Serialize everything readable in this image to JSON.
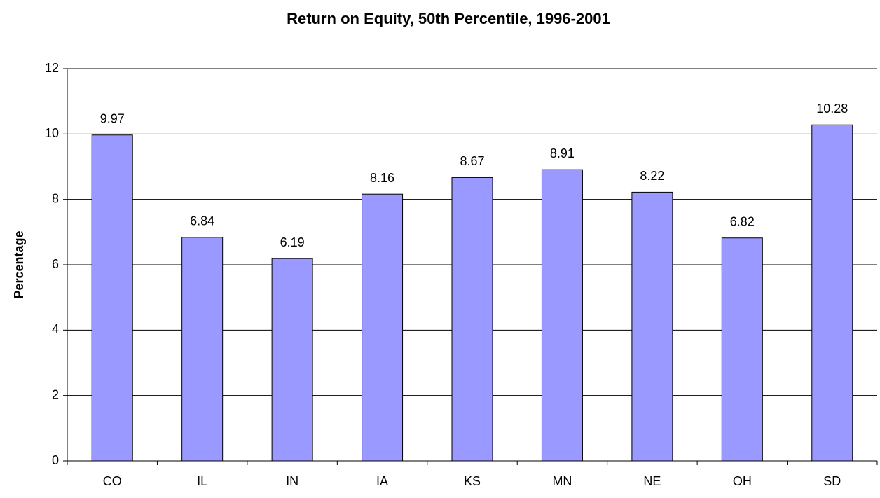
{
  "chart_data": {
    "type": "bar",
    "title": "Return on Equity, 50th Percentile, 1996-2001",
    "y_label": "Percentage",
    "categories": [
      "CO",
      "IL",
      "IN",
      "IA",
      "KS",
      "MN",
      "NE",
      "OH",
      "SD"
    ],
    "values": [
      9.97,
      6.84,
      6.19,
      8.16,
      8.67,
      8.91,
      8.22,
      6.82,
      10.28
    ],
    "color": "#9999ff",
    "ylim": [
      0,
      12
    ],
    "yticks": [
      0,
      2,
      4,
      6,
      8,
      10,
      12
    ],
    "grid": true
  }
}
